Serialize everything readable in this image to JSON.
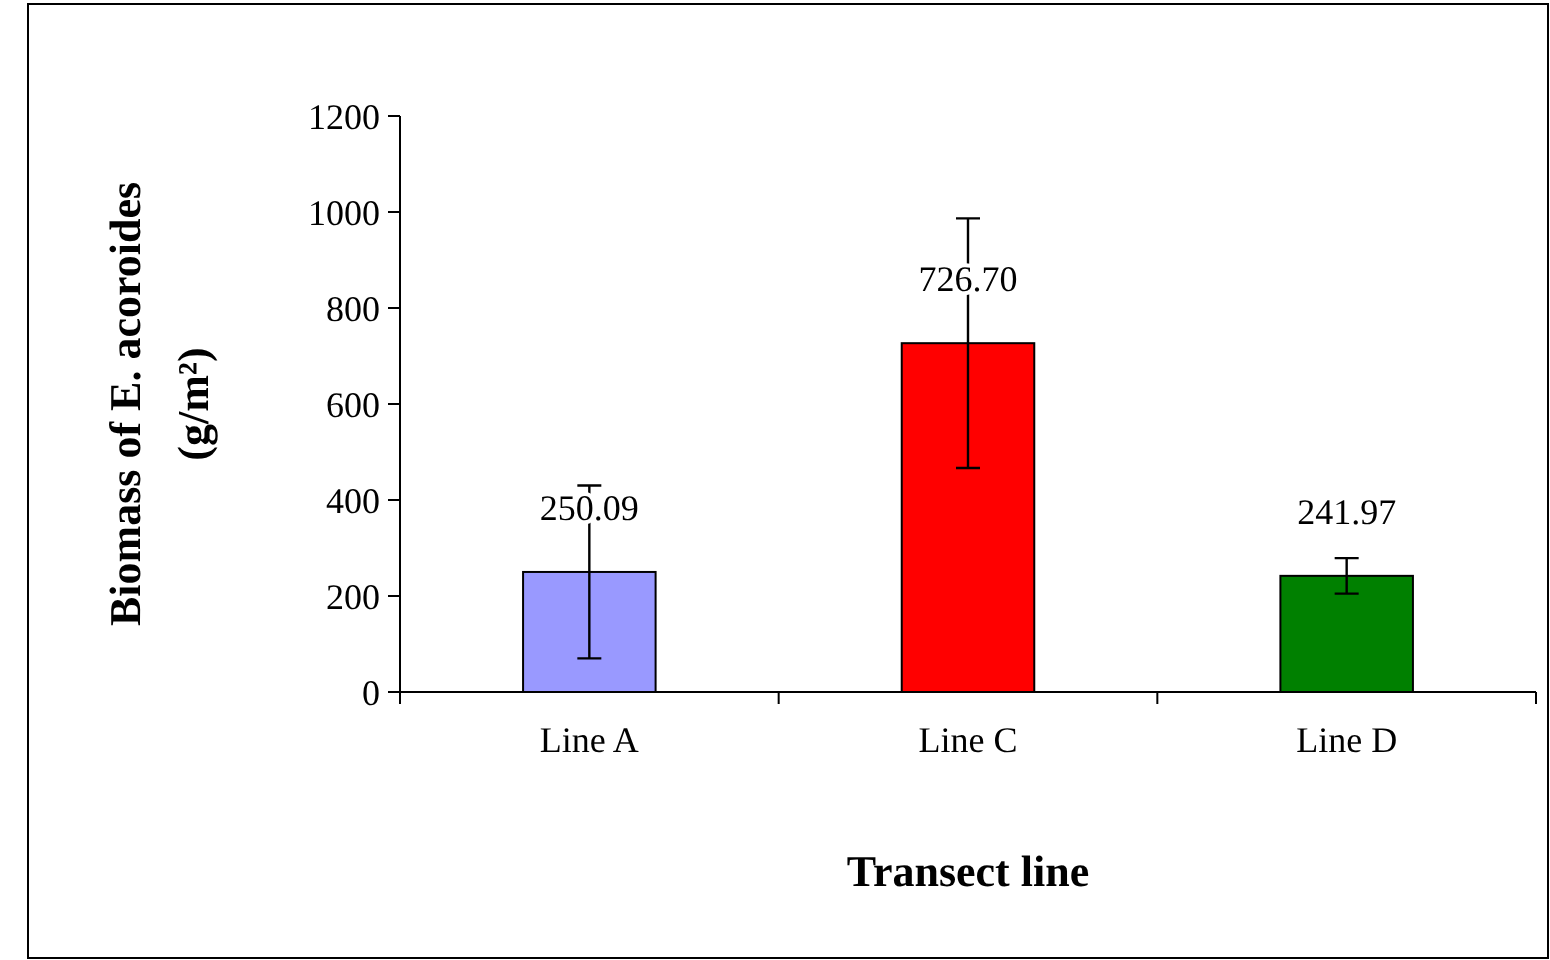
{
  "chart_data": {
    "type": "bar",
    "xlabel": "Transect line",
    "ylabel": "Biomass of E. acoroides (g/m²)",
    "categories": [
      "Line A",
      "Line C",
      "Line D"
    ],
    "values": [
      250.09,
      726.7,
      241.97
    ],
    "colors": [
      "#9999ff",
      "#ff0000",
      "#008000"
    ],
    "errors": [
      180,
      260,
      37
    ],
    "value_labels": [
      "250.09",
      "726.70",
      "241.97"
    ],
    "ylim": [
      0,
      1200
    ],
    "yticks": [
      0,
      200,
      400,
      600,
      800,
      1000,
      1200
    ],
    "grid": false
  }
}
